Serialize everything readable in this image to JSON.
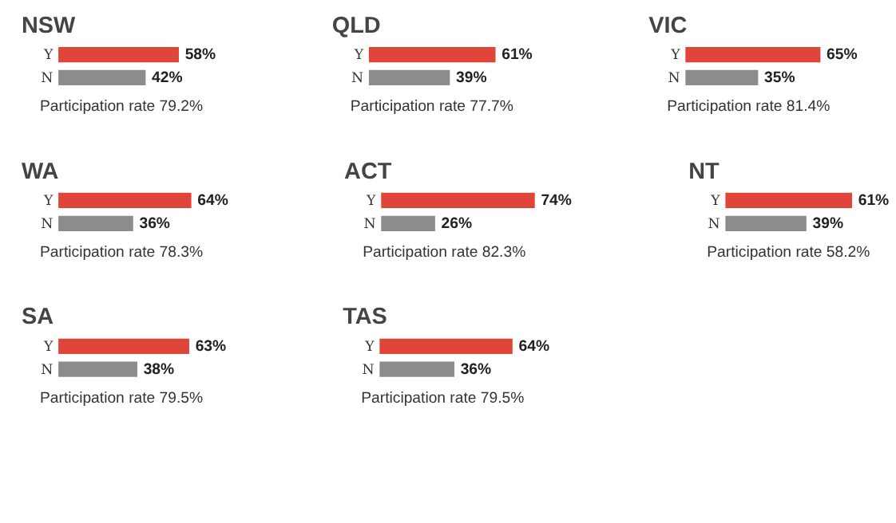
{
  "chart_data": [
    {
      "type": "bar",
      "orientation": "horizontal",
      "title": "NSW",
      "categories": [
        "Y",
        "N"
      ],
      "values": [
        58,
        42
      ],
      "colors": [
        "#e0453a",
        "#8c8c8c"
      ],
      "value_labels": [
        "58%",
        "42%"
      ],
      "annotations": [
        "Participation rate 79.2%"
      ],
      "tick_labels": "y"
    },
    {
      "type": "bar",
      "orientation": "horizontal",
      "title": "QLD",
      "categories": [
        "Y",
        "N"
      ],
      "values": [
        61,
        39
      ],
      "colors": [
        "#e0453a",
        "#8c8c8c"
      ],
      "value_labels": [
        "61%",
        "39%"
      ],
      "annotations": [
        "Participation rate 77.7%"
      ],
      "tick_labels": "y"
    },
    {
      "type": "bar",
      "orientation": "horizontal",
      "title": "VIC",
      "categories": [
        "Y",
        "N"
      ],
      "values": [
        65,
        35
      ],
      "colors": [
        "#e0453a",
        "#8c8c8c"
      ],
      "value_labels": [
        "65%",
        "35%"
      ],
      "annotations": [
        "Participation rate 81.4%"
      ],
      "tick_labels": "y"
    },
    {
      "type": "bar",
      "orientation": "horizontal",
      "title": "WA",
      "categories": [
        "Y",
        "N"
      ],
      "values": [
        64,
        36
      ],
      "colors": [
        "#e0453a",
        "#8c8c8c"
      ],
      "value_labels": [
        "64%",
        "36%"
      ],
      "annotations": [
        "Participation rate 78.3%"
      ],
      "tick_labels": "y"
    },
    {
      "type": "bar",
      "orientation": "horizontal",
      "title": "ACT",
      "categories": [
        "Y",
        "N"
      ],
      "values": [
        74,
        26
      ],
      "colors": [
        "#e0453a",
        "#8c8c8c"
      ],
      "value_labels": [
        "74%",
        "26%"
      ],
      "annotations": [
        "Participation rate 82.3%"
      ],
      "tick_labels": "y"
    },
    {
      "type": "bar",
      "orientation": "horizontal",
      "title": "NT",
      "categories": [
        "Y",
        "N"
      ],
      "values": [
        61,
        39
      ],
      "colors": [
        "#e0453a",
        "#8c8c8c"
      ],
      "value_labels": [
        "61%",
        "39%"
      ],
      "annotations": [
        "Participation rate 58.2%"
      ],
      "tick_labels": "y"
    },
    {
      "type": "bar",
      "orientation": "horizontal",
      "title": "SA",
      "categories": [
        "Y",
        "N"
      ],
      "values": [
        63,
        38
      ],
      "colors": [
        "#e0453a",
        "#8c8c8c"
      ],
      "value_labels": [
        "63%",
        "38%"
      ],
      "annotations": [
        "Participation rate 79.5%"
      ],
      "tick_labels": "y"
    },
    {
      "type": "bar",
      "orientation": "horizontal",
      "title": "TAS",
      "categories": [
        "Y",
        "N"
      ],
      "values": [
        64,
        36
      ],
      "colors": [
        "#e0453a",
        "#8c8c8c"
      ],
      "value_labels": [
        "64%",
        "36%"
      ],
      "annotations": [
        "Participation rate 79.5%"
      ],
      "tick_labels": "y"
    }
  ]
}
